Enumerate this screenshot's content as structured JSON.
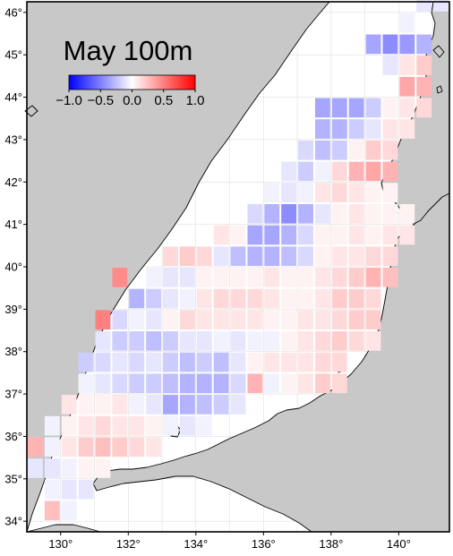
{
  "map": {
    "title": "May 100m",
    "colorbar": {
      "min": -1.0,
      "max": 1.0,
      "ticks": [
        "−1.0",
        "−0.5",
        "0.0",
        "0.5",
        "1.0"
      ],
      "colors": {
        "negative": "#0000ff",
        "zero": "#ffffff",
        "positive": "#ff0000"
      }
    },
    "lon_range": [
      129,
      141.5
    ],
    "lat_range": [
      33.75,
      46.25
    ],
    "lon_ticks": [
      "130°",
      "132°",
      "134°",
      "136°",
      "138°",
      "140°"
    ],
    "lat_ticks": [
      "34°",
      "35°",
      "36°",
      "37°",
      "38°",
      "39°",
      "40°",
      "41°",
      "42°",
      "43°",
      "44°",
      "45°",
      "46°"
    ],
    "colors": {
      "land": "#c8c8c8",
      "sea": "#ffffff",
      "gridline": "#d8d8d8",
      "coast": "#000000",
      "frame": "#000000"
    },
    "cell_size_deg": {
      "lon": 0.5,
      "lat": 0.5
    },
    "cells": [
      [
        140.75,
        46.25,
        -0.1
      ],
      [
        141.25,
        46.25,
        -0.1
      ],
      [
        140.25,
        45.75,
        -0.05
      ],
      [
        139.25,
        45.25,
        -0.35
      ],
      [
        139.75,
        45.25,
        -0.45
      ],
      [
        140.25,
        45.25,
        -0.4
      ],
      [
        140.75,
        45.25,
        -0.3
      ],
      [
        139.75,
        44.75,
        -0.1
      ],
      [
        140.25,
        44.75,
        0.1
      ],
      [
        140.75,
        44.75,
        0.2
      ],
      [
        140.25,
        44.25,
        0.35
      ],
      [
        140.75,
        44.25,
        0.3
      ],
      [
        137.75,
        43.75,
        -0.35
      ],
      [
        138.25,
        43.75,
        -0.35
      ],
      [
        138.75,
        43.75,
        -0.35
      ],
      [
        139.25,
        43.75,
        -0.2
      ],
      [
        139.75,
        43.75,
        0.05
      ],
      [
        140.25,
        43.75,
        0.1
      ],
      [
        140.75,
        43.75,
        0.15
      ],
      [
        137.75,
        43.25,
        -0.3
      ],
      [
        138.25,
        43.25,
        -0.3
      ],
      [
        138.75,
        43.25,
        -0.2
      ],
      [
        139.25,
        43.25,
        -0.1
      ],
      [
        139.75,
        43.25,
        0.1
      ],
      [
        140.25,
        43.25,
        0.1
      ],
      [
        137.25,
        42.75,
        -0.15
      ],
      [
        137.75,
        42.75,
        -0.25
      ],
      [
        138.25,
        42.75,
        -0.2
      ],
      [
        138.75,
        42.75,
        0.05
      ],
      [
        139.25,
        42.75,
        0.2
      ],
      [
        139.75,
        42.75,
        0.15
      ],
      [
        136.75,
        42.25,
        -0.1
      ],
      [
        137.25,
        42.25,
        -0.2
      ],
      [
        137.75,
        42.25,
        -0.05
      ],
      [
        138.25,
        42.25,
        0.15
      ],
      [
        138.75,
        42.25,
        0.3
      ],
      [
        139.25,
        42.25,
        0.35
      ],
      [
        139.75,
        42.25,
        0.3
      ],
      [
        136.25,
        41.75,
        -0.05
      ],
      [
        136.75,
        41.75,
        -0.1
      ],
      [
        137.25,
        41.75,
        -0.05
      ],
      [
        137.75,
        41.75,
        0.1
      ],
      [
        138.25,
        41.75,
        0.15
      ],
      [
        138.75,
        41.75,
        0.1
      ],
      [
        139.25,
        41.75,
        0.05
      ],
      [
        139.75,
        41.75,
        0.05
      ],
      [
        135.75,
        41.25,
        -0.15
      ],
      [
        136.25,
        41.25,
        -0.3
      ],
      [
        136.75,
        41.25,
        -0.45
      ],
      [
        137.25,
        41.25,
        -0.3
      ],
      [
        137.75,
        41.25,
        -0.1
      ],
      [
        138.25,
        41.25,
        0.05
      ],
      [
        138.75,
        41.25,
        0.1
      ],
      [
        139.25,
        41.25,
        0.05
      ],
      [
        139.75,
        41.25,
        0.05
      ],
      [
        140.25,
        41.25,
        0.05
      ],
      [
        134.75,
        40.75,
        0.1
      ],
      [
        135.25,
        40.75,
        0.05
      ],
      [
        135.75,
        40.75,
        -0.35
      ],
      [
        136.25,
        40.75,
        -0.35
      ],
      [
        136.75,
        40.75,
        -0.3
      ],
      [
        137.25,
        40.75,
        -0.15
      ],
      [
        137.75,
        40.75,
        0.05
      ],
      [
        138.25,
        40.75,
        0.05
      ],
      [
        138.75,
        40.75,
        0.1
      ],
      [
        139.25,
        40.75,
        0.05
      ],
      [
        139.75,
        40.75,
        0.1
      ],
      [
        140.25,
        40.75,
        0.1
      ],
      [
        133.25,
        40.25,
        0.15
      ],
      [
        133.75,
        40.25,
        0.2
      ],
      [
        134.25,
        40.25,
        0.15
      ],
      [
        134.75,
        40.25,
        -0.1
      ],
      [
        135.25,
        40.25,
        -0.25
      ],
      [
        135.75,
        40.25,
        -0.3
      ],
      [
        136.25,
        40.25,
        -0.3
      ],
      [
        136.75,
        40.25,
        -0.25
      ],
      [
        137.25,
        40.25,
        -0.15
      ],
      [
        137.75,
        40.25,
        0.05
      ],
      [
        138.25,
        40.25,
        0.1
      ],
      [
        138.75,
        40.25,
        0.1
      ],
      [
        139.25,
        40.25,
        0.15
      ],
      [
        139.75,
        40.25,
        0.15
      ],
      [
        131.75,
        39.75,
        0.45
      ],
      [
        132.75,
        39.75,
        -0.05
      ],
      [
        133.25,
        39.75,
        -0.1
      ],
      [
        133.75,
        39.75,
        -0.1
      ],
      [
        134.25,
        39.75,
        0.05
      ],
      [
        134.75,
        39.75,
        0.05
      ],
      [
        135.25,
        39.75,
        0.05
      ],
      [
        135.75,
        39.75,
        0.05
      ],
      [
        136.25,
        39.75,
        0.1
      ],
      [
        136.75,
        39.75,
        0.05
      ],
      [
        137.25,
        39.75,
        0.05
      ],
      [
        137.75,
        39.75,
        0.1
      ],
      [
        138.25,
        39.75,
        0.15
      ],
      [
        138.75,
        39.75,
        0.2
      ],
      [
        139.25,
        39.75,
        0.3
      ],
      [
        139.75,
        39.75,
        0.25
      ],
      [
        132.25,
        39.25,
        -0.3
      ],
      [
        132.75,
        39.25,
        -0.2
      ],
      [
        133.25,
        39.25,
        -0.1
      ],
      [
        133.75,
        39.25,
        -0.05
      ],
      [
        134.25,
        39.25,
        0.1
      ],
      [
        134.75,
        39.25,
        0.15
      ],
      [
        135.25,
        39.25,
        0.15
      ],
      [
        135.75,
        39.25,
        0.15
      ],
      [
        136.25,
        39.25,
        0.1
      ],
      [
        136.75,
        39.25,
        0.05
      ],
      [
        137.25,
        39.25,
        0.05
      ],
      [
        137.75,
        39.25,
        0.1
      ],
      [
        138.25,
        39.25,
        0.2
      ],
      [
        138.75,
        39.25,
        0.2
      ],
      [
        139.25,
        39.25,
        0.15
      ],
      [
        131.25,
        38.75,
        0.5
      ],
      [
        131.75,
        38.75,
        -0.15
      ],
      [
        132.25,
        38.75,
        -0.05
      ],
      [
        132.75,
        38.75,
        -0.1
      ],
      [
        133.25,
        38.75,
        0.05
      ],
      [
        133.75,
        38.75,
        0.15
      ],
      [
        134.25,
        38.75,
        0.1
      ],
      [
        134.75,
        38.75,
        0.1
      ],
      [
        135.25,
        38.75,
        0.1
      ],
      [
        135.75,
        38.75,
        0.1
      ],
      [
        136.25,
        38.75,
        0.05
      ],
      [
        136.75,
        38.75,
        0.05
      ],
      [
        137.25,
        38.75,
        0.1
      ],
      [
        137.75,
        38.75,
        0.1
      ],
      [
        138.25,
        38.75,
        0.15
      ],
      [
        138.75,
        38.75,
        0.2
      ],
      [
        139.25,
        38.75,
        0.2
      ],
      [
        131.25,
        38.25,
        -0.1
      ],
      [
        131.75,
        38.25,
        -0.2
      ],
      [
        132.25,
        38.25,
        -0.2
      ],
      [
        132.75,
        38.25,
        -0.25
      ],
      [
        133.25,
        38.25,
        -0.2
      ],
      [
        133.75,
        38.25,
        -0.1
      ],
      [
        134.25,
        38.25,
        -0.1
      ],
      [
        134.75,
        38.25,
        -0.05
      ],
      [
        135.25,
        38.25,
        -0.1
      ],
      [
        135.75,
        38.25,
        -0.05
      ],
      [
        136.25,
        38.25,
        -0.05
      ],
      [
        136.75,
        38.25,
        0.05
      ],
      [
        137.25,
        38.25,
        0.1
      ],
      [
        137.75,
        38.25,
        0.15
      ],
      [
        138.25,
        38.25,
        0.2
      ],
      [
        138.75,
        38.25,
        0.15
      ],
      [
        139.25,
        38.25,
        0.1
      ],
      [
        130.75,
        37.75,
        -0.2
      ],
      [
        131.25,
        37.75,
        -0.15
      ],
      [
        131.75,
        37.75,
        -0.1
      ],
      [
        132.25,
        37.75,
        -0.15
      ],
      [
        132.75,
        37.75,
        -0.1
      ],
      [
        133.25,
        37.75,
        -0.2
      ],
      [
        133.75,
        37.75,
        -0.25
      ],
      [
        134.25,
        37.75,
        -0.2
      ],
      [
        134.75,
        37.75,
        -0.25
      ],
      [
        135.25,
        37.75,
        -0.1
      ],
      [
        135.75,
        37.75,
        0.05
      ],
      [
        136.25,
        37.75,
        0.1
      ],
      [
        136.75,
        37.75,
        0.1
      ],
      [
        137.25,
        37.75,
        0.1
      ],
      [
        137.75,
        37.75,
        0.15
      ],
      [
        138.25,
        37.75,
        0.15
      ],
      [
        130.75,
        37.25,
        -0.05
      ],
      [
        131.25,
        37.25,
        -0.1
      ],
      [
        131.75,
        37.25,
        -0.15
      ],
      [
        132.25,
        37.25,
        -0.2
      ],
      [
        132.75,
        37.25,
        -0.2
      ],
      [
        133.25,
        37.25,
        -0.25
      ],
      [
        133.75,
        37.25,
        -0.3
      ],
      [
        134.25,
        37.25,
        -0.3
      ],
      [
        134.75,
        37.25,
        -0.3
      ],
      [
        135.25,
        37.25,
        -0.15
      ],
      [
        135.75,
        37.25,
        0.3
      ],
      [
        136.25,
        37.25,
        -0.05
      ],
      [
        136.75,
        37.25,
        0.05
      ],
      [
        137.25,
        37.25,
        0.1
      ],
      [
        137.75,
        37.25,
        0.2
      ],
      [
        138.25,
        37.25,
        0.15
      ],
      [
        130.25,
        36.75,
        0.1
      ],
      [
        130.75,
        36.75,
        0.05
      ],
      [
        131.25,
        36.75,
        0.05
      ],
      [
        131.75,
        36.75,
        0.1
      ],
      [
        132.25,
        36.75,
        -0.05
      ],
      [
        132.75,
        36.75,
        -0.1
      ],
      [
        133.25,
        36.75,
        -0.35
      ],
      [
        133.75,
        36.75,
        -0.3
      ],
      [
        134.25,
        36.75,
        -0.25
      ],
      [
        134.75,
        36.75,
        -0.2
      ],
      [
        135.25,
        36.75,
        -0.1
      ],
      [
        129.75,
        36.25,
        -0.05
      ],
      [
        130.25,
        36.25,
        0.05
      ],
      [
        130.75,
        36.25,
        0.1
      ],
      [
        131.25,
        36.25,
        0.15
      ],
      [
        131.75,
        36.25,
        0.1
      ],
      [
        132.25,
        36.25,
        0.1
      ],
      [
        132.75,
        36.25,
        0.05
      ],
      [
        133.25,
        36.25,
        -0.05
      ],
      [
        133.75,
        36.25,
        -0.1
      ],
      [
        134.25,
        36.25,
        -0.05
      ],
      [
        129.25,
        35.75,
        0.3
      ],
      [
        129.75,
        35.75,
        -0.05
      ],
      [
        130.25,
        35.75,
        0.1
      ],
      [
        130.75,
        35.75,
        0.2
      ],
      [
        131.25,
        35.75,
        0.25
      ],
      [
        131.75,
        35.75,
        0.2
      ],
      [
        132.25,
        35.75,
        0.15
      ],
      [
        132.75,
        35.75,
        0.1
      ],
      [
        129.25,
        35.25,
        -0.1
      ],
      [
        129.75,
        35.25,
        -0.1
      ],
      [
        130.25,
        35.25,
        -0.05
      ],
      [
        130.75,
        35.25,
        0.05
      ],
      [
        131.25,
        35.25,
        0.05
      ],
      [
        129.75,
        34.75,
        -0.05
      ],
      [
        130.25,
        34.75,
        -0.1
      ],
      [
        130.75,
        34.75,
        -0.1
      ],
      [
        129.75,
        34.25,
        0.25
      ],
      [
        130.25,
        34.25,
        -0.05
      ]
    ]
  }
}
